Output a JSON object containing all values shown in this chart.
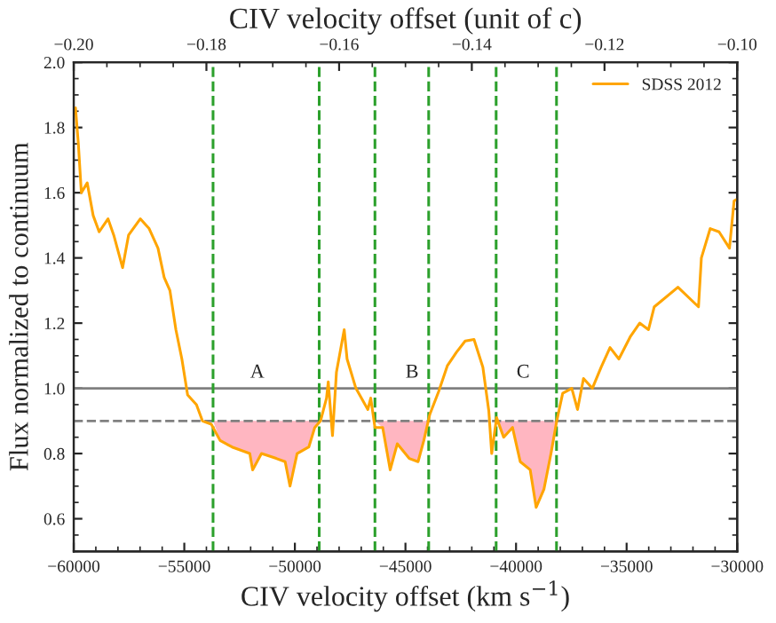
{
  "chart_data": {
    "type": "line",
    "xlabel": "CIV velocity offset (km s$^{−1}$)",
    "ylabel": "Flux normalized to continuum",
    "x2label": "CIV velocity offset (unit of c)",
    "xlim": [
      -60000,
      -30000
    ],
    "ylim": [
      0.5,
      2.0
    ],
    "xticks": [
      {
        "value": -60000,
        "label": "−60000"
      },
      {
        "value": -55000,
        "label": "−55000"
      },
      {
        "value": -50000,
        "label": "−50000"
      },
      {
        "value": -45000,
        "label": "−45000"
      },
      {
        "value": -40000,
        "label": "−40000"
      },
      {
        "value": -35000,
        "label": "−35000"
      },
      {
        "value": -30000,
        "label": "−30000"
      }
    ],
    "yticks": [
      0.6,
      0.8,
      {
        "value": 1.0,
        "label": "1.0"
      },
      1.2,
      1.4,
      1.6,
      1.8,
      {
        "value": 2.0,
        "label": "2.0"
      }
    ],
    "x2lim": [
      -0.2,
      -0.1
    ],
    "x2ticks": [
      {
        "value": -0.2,
        "label": "−0.20"
      },
      {
        "value": -0.18,
        "label": "−0.18"
      },
      {
        "value": -0.16,
        "label": "−0.16"
      },
      {
        "value": -0.14,
        "label": "−0.14"
      },
      {
        "value": -0.12,
        "label": "−0.12"
      },
      {
        "value": -0.1,
        "label": "−0.10"
      }
    ],
    "series": [
      {
        "name": "SDSS 2012",
        "color": "#ffa500",
        "x": [
          -59920,
          -59790,
          -59655,
          -59390,
          -59120,
          -58850,
          -58450,
          -58190,
          -57790,
          -57520,
          -56990,
          -56590,
          -56190,
          -55910,
          -55650,
          -55380,
          -55110,
          -54850,
          -54450,
          -54180,
          -53780,
          -53380,
          -52840,
          -52040,
          -51910,
          -51510,
          -50840,
          -50440,
          -50220,
          -49900,
          -49370,
          -49100,
          -48840,
          -48570,
          -48490,
          -48300,
          -48120,
          -47770,
          -47640,
          -47240,
          -46700,
          -46570,
          -46380,
          -46030,
          -45690,
          -45370,
          -44830,
          -44430,
          -44170,
          -43900,
          -43500,
          -43100,
          -42700,
          -42300,
          -41900,
          -41500,
          -41230,
          -41100,
          -40880,
          -40560,
          -40160,
          -39810,
          -39360,
          -39090,
          -38740,
          -38420,
          -38160,
          -37890,
          -37480,
          -37220,
          -36950,
          -36550,
          -36150,
          -35750,
          -35350,
          -34820,
          -34410,
          -34010,
          -33750,
          -32680,
          -31750,
          -31620,
          -31220,
          -30820,
          -30350,
          -30140,
          -30010
        ],
        "values": [
          1.86,
          1.75,
          1.6,
          1.63,
          1.53,
          1.48,
          1.52,
          1.47,
          1.37,
          1.47,
          1.52,
          1.49,
          1.43,
          1.34,
          1.3,
          1.18,
          1.09,
          0.98,
          0.95,
          0.9,
          0.89,
          0.84,
          0.82,
          0.8,
          0.75,
          0.8,
          0.785,
          0.775,
          0.7,
          0.8,
          0.82,
          0.88,
          0.9,
          0.97,
          1.02,
          0.855,
          1.05,
          1.18,
          1.09,
          1.0,
          0.935,
          0.97,
          0.88,
          0.88,
          0.75,
          0.83,
          0.785,
          0.775,
          0.84,
          0.92,
          0.99,
          1.07,
          1.11,
          1.145,
          1.15,
          1.065,
          0.93,
          0.8,
          0.91,
          0.85,
          0.88,
          0.775,
          0.75,
          0.635,
          0.69,
          0.8,
          0.9,
          0.985,
          1.0,
          0.935,
          1.03,
          1.0,
          1.065,
          1.125,
          1.09,
          1.16,
          1.2,
          1.18,
          1.25,
          1.31,
          1.25,
          1.4,
          1.49,
          1.48,
          1.43,
          1.575,
          1.58
        ]
      },
      {
        "type": "area",
        "color": "#ffb6c1",
        "x": [
          -53700,
          -53380,
          -52840,
          -52040,
          -51910,
          -51510,
          -50840,
          -50440,
          -50220,
          -49900,
          -49370,
          -49100,
          -48900
        ],
        "values": [
          0.9,
          0.84,
          0.82,
          0.8,
          0.75,
          0.8,
          0.785,
          0.775,
          0.7,
          0.8,
          0.82,
          0.88,
          0.9
        ]
      },
      {
        "type": "area",
        "color": "#ffb6c1",
        "x": [
          -46380,
          -46030,
          -45690,
          -45370,
          -44830,
          -44430,
          -44170,
          -43950
        ],
        "values": [
          0.9,
          0.88,
          0.75,
          0.83,
          0.785,
          0.775,
          0.84,
          0.9
        ]
      },
      {
        "type": "area",
        "color": "#ffb6c1",
        "x": [
          -40900,
          -40560,
          -40160,
          -39810,
          -39360,
          -39090,
          -38740,
          -38420,
          -38170
        ],
        "values": [
          0.9,
          0.85,
          0.88,
          0.775,
          0.75,
          0.635,
          0.69,
          0.8,
          0.9
        ]
      }
    ],
    "ref_lines": [
      {
        "axis": "y",
        "value": 1.0,
        "color": "#808080",
        "line_style": "solid"
      },
      {
        "axis": "y",
        "value": 0.9,
        "color": "#808080",
        "line_style": "dashed"
      },
      {
        "axis": "x",
        "value": -53700,
        "color": "#2ca02c",
        "line_style": "dashed"
      },
      {
        "axis": "x",
        "value": -48900,
        "color": "#2ca02c",
        "line_style": "dashed"
      },
      {
        "axis": "x",
        "value": -46380,
        "color": "#2ca02c",
        "line_style": "dashed"
      },
      {
        "axis": "x",
        "value": -43950,
        "color": "#2ca02c",
        "line_style": "dashed"
      },
      {
        "axis": "x",
        "value": -40900,
        "color": "#2ca02c",
        "line_style": "dashed"
      },
      {
        "axis": "x",
        "value": -38170,
        "color": "#2ca02c",
        "line_style": "dashed"
      }
    ],
    "annotations": [
      {
        "text": "A",
        "x": -51700,
        "y": 1.02
      },
      {
        "text": "B",
        "x": -44700,
        "y": 1.02
      },
      {
        "text": "C",
        "x": -39680,
        "y": 1.02
      }
    ],
    "legend": "top right",
    "grid": false
  }
}
